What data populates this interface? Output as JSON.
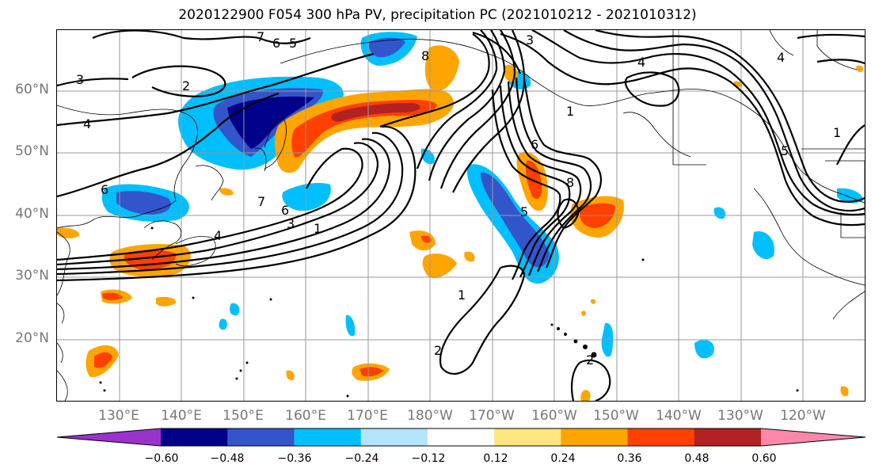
{
  "title": "2020122900 F054 300 hPa PV, precipitation PC (2021010212 - 2021010312)",
  "lat_labels": [
    "60°N",
    "50°N",
    "40°N",
    "30°N",
    "20°N"
  ],
  "lon_labels": [
    "130°E",
    "140°E",
    "150°E",
    "160°E",
    "170°E",
    "180°W",
    "170°W",
    "160°W",
    "150°W",
    "140°W",
    "130°W",
    "120°W"
  ],
  "colorbar": {
    "colors": [
      "#9933cc",
      "#00008b",
      "#3355cc",
      "#00bfff",
      "#b3e5fc",
      "#ffffff",
      "#ffe680",
      "#ffa500",
      "#ff4000",
      "#b22222",
      "#ff88aa"
    ],
    "tick_labels": [
      "−0.60",
      "−0.48",
      "−0.36",
      "−0.24",
      "−0.12",
      "0.12",
      "0.24",
      "0.36",
      "0.48",
      "0.60"
    ]
  },
  "contour_labels": [
    "7",
    "6",
    "5",
    "3",
    "2",
    "4",
    "6",
    "4",
    "3",
    "1",
    "7",
    "6",
    "3",
    "4",
    "1",
    "8",
    "5",
    "1",
    "2",
    "4",
    "1",
    "5",
    "6",
    "8",
    "2"
  ]
}
